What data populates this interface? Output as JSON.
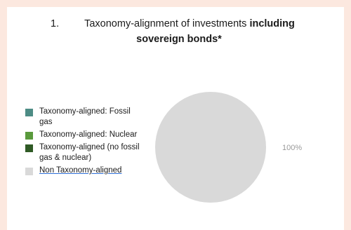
{
  "title": {
    "number": "1.",
    "text_plain": "Taxonomy-alignment of investments ",
    "text_bold_1": "including",
    "text_bold_2": "sovereign bonds*"
  },
  "legend": [
    {
      "label": "Taxonomy-aligned: Fossil gas",
      "color": "#4d8c85"
    },
    {
      "label": "Taxonomy-aligned: Nuclear",
      "color": "#5a9a3c"
    },
    {
      "label": "Taxonomy-aligned (no fossil gas & nuclear)",
      "color": "#2f5a25"
    },
    {
      "label": "Non Taxonomy-aligned",
      "color": "#d9d9d9"
    }
  ],
  "chart_data": {
    "type": "pie",
    "title": "Taxonomy-alignment of investments including sovereign bonds*",
    "slices": [
      {
        "label": "Taxonomy-aligned: Fossil gas",
        "value": 0,
        "color": "#4d8c85"
      },
      {
        "label": "Taxonomy-aligned: Nuclear",
        "value": 0,
        "color": "#5a9a3c"
      },
      {
        "label": "Taxonomy-aligned (no fossil gas & nuclear)",
        "value": 0,
        "color": "#2f5a25"
      },
      {
        "label": "Non Taxonomy-aligned",
        "value": 100,
        "color": "#d9d9d9"
      }
    ],
    "data_labels": [
      "100%"
    ],
    "legend_position": "left"
  }
}
